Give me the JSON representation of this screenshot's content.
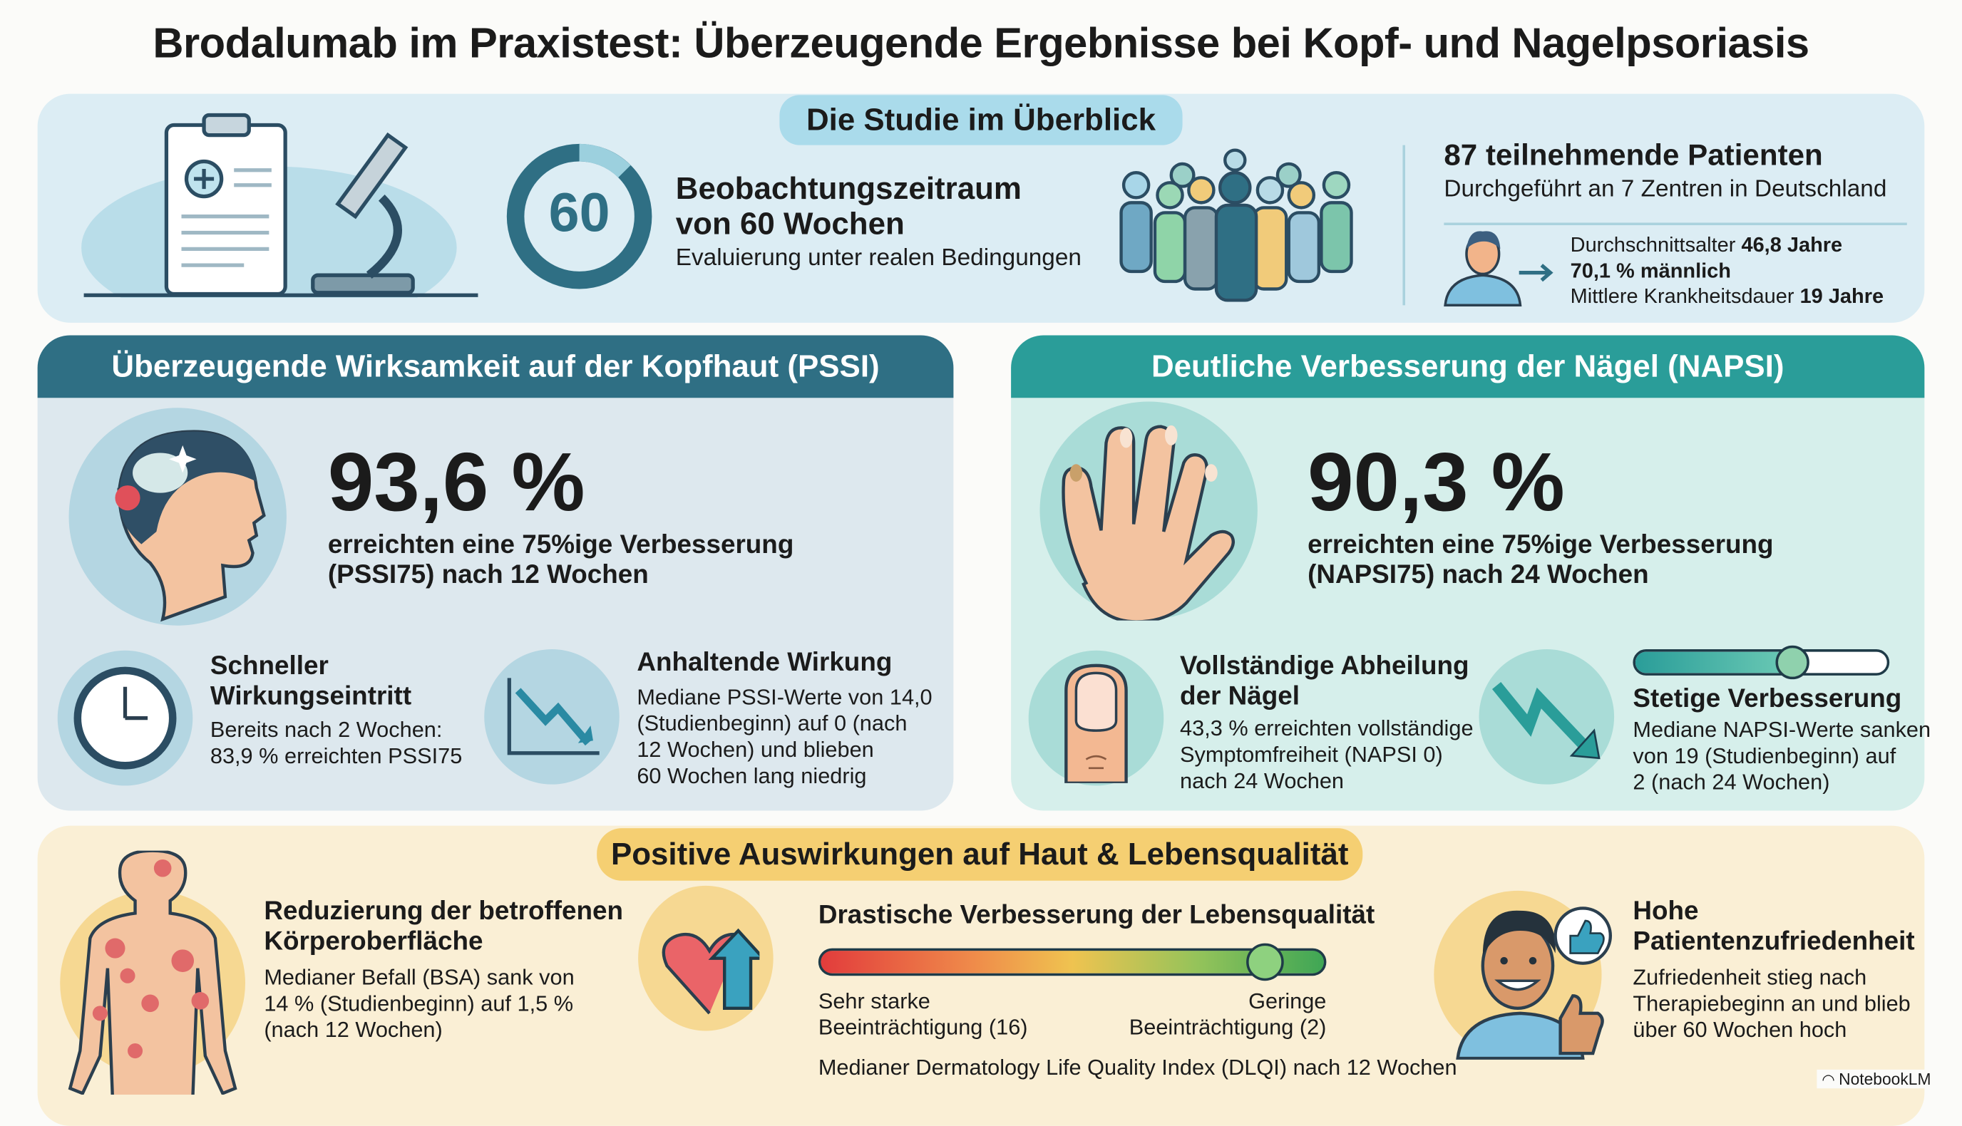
{
  "title": "Brodalumab im Praxistest: Überzeugende Ergebnisse bei Kopf- und Nagelpsoriasis",
  "overview": {
    "label": "Die Studie im Überblick",
    "ring_value": "60",
    "period_line1": "Beobachtungszeitraum",
    "period_line2": "von 60 Wochen",
    "period_sub": "Evaluierung unter realen Bedingungen",
    "patients_title": "87 teilnehmende Patienten",
    "patients_sub": "Durchgeführt an 7 Zentren in Deutschland",
    "age_label": "Durchschnittsalter ",
    "age_value": "46,8 Jahre",
    "male": "70,1 % männlich",
    "duration_label": "Mittlere Krankheitsdauer ",
    "duration_value": "19 Jahre"
  },
  "pssi": {
    "header": "Überzeugende Wirksamkeit auf der Kopfhaut (PSSI)",
    "percent": "93,6 %",
    "desc1": "erreichten eine 75%ige Verbesserung",
    "desc2": "(PSSI75) nach 12 Wochen",
    "fast_title1": "Schneller",
    "fast_title2": "Wirkungseintritt",
    "fast_body1": "Bereits nach 2 Wochen:",
    "fast_body2": "83,9 % erreichten PSSI75",
    "lasting_title": "Anhaltende Wirkung",
    "lasting_body": [
      "Mediane PSSI-Werte von 14,0",
      "(Studienbeginn) auf 0 (nach",
      "12 Wochen) und blieben",
      "60 Wochen lang niedrig"
    ]
  },
  "napsi": {
    "header": "Deutliche Verbesserung der Nägel (NAPSI)",
    "percent": "90,3 %",
    "desc1": "erreichten eine 75%ige Verbesserung",
    "desc2": "(NAPSI75) nach 24 Wochen",
    "heal_title1": "Vollständige Abheilung",
    "heal_title2": "der Nägel",
    "heal_body": [
      "43,3 % erreichten vollständige",
      "Symptomfreiheit (NAPSI 0)",
      "nach 24 Wochen"
    ],
    "steady_title": "Stetige Verbesserung",
    "steady_body": [
      "Mediane NAPSI-Werte sanken",
      "von 19 (Studienbeginn) auf",
      "2 (nach 24 Wochen)"
    ],
    "slider_level": 0.62
  },
  "quality": {
    "label": "Positive Auswirkungen auf Haut & Lebensqualität",
    "bsa_title1": "Reduzierung der betroffenen",
    "bsa_title2": "Körperoberfläche",
    "bsa_body": [
      "Medianer Befall (BSA) sank von",
      "14 % (Studienbeginn) auf 1,5 %",
      "(nach 12 Wochen)"
    ],
    "dlqi_title": "Drastische Verbesserung der Lebensqualität",
    "dlqi_left1": "Sehr starke",
    "dlqi_left2": "Beeinträchtigung (16)",
    "dlqi_right1": "Geringe",
    "dlqi_right2": "Beeinträchtigung (2)",
    "dlqi_footer": "Medianer Dermatology Life Quality Index (DLQI) nach 12 Wochen",
    "dlqi_level": 0.88,
    "sat_title1": "Hohe",
    "sat_title2": "Patientenzufriedenheit",
    "sat_body": [
      "Zufriedenheit stieg nach",
      "Therapiebeginn an und blieb",
      "über 60 Wochen hoch"
    ]
  },
  "brand": "NotebookLM",
  "colors": {
    "pssi_header": "#2f6f84",
    "napsi_header": "#2a9d99",
    "overview_bg": "#dcedf4",
    "pssi_bg": "#dde8ee",
    "napsi_bg": "#d6efeb",
    "quality_bg": "#faefd5",
    "quality_pill": "#f5cf72"
  }
}
